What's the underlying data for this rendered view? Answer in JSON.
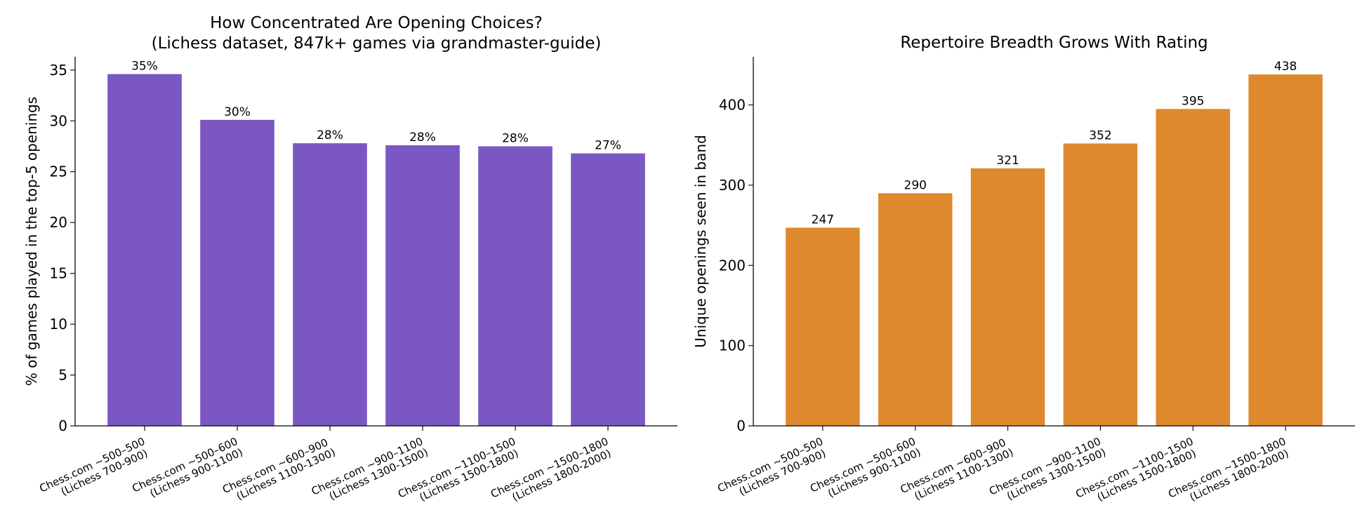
{
  "chart_data": [
    {
      "type": "bar",
      "title": "How Concentrated Are Opening Choices?\n(Lichess dataset, 847k+ games via grandmaster-guide)",
      "xlabel": "",
      "ylabel": "% of games played in the top-5 openings",
      "categories": [
        "Chess.com ~500–500\n(Lichess 700-900)",
        "Chess.com ~500–600\n(Lichess 900-1100)",
        "Chess.com ~600–900\n(Lichess 1100-1300)",
        "Chess.com ~900–1100\n(Lichess 1300-1500)",
        "Chess.com ~1100–1500\n(Lichess 1500-1800)",
        "Chess.com ~1500–1800\n(Lichess 1800-2000)"
      ],
      "values": [
        34.6,
        30.1,
        27.8,
        27.6,
        27.5,
        26.8
      ],
      "data_labels": [
        "35%",
        "30%",
        "28%",
        "28%",
        "28%",
        "27%"
      ],
      "ylim": [
        0,
        36.3
      ],
      "yticks": [
        0,
        5,
        10,
        15,
        20,
        25,
        30,
        35
      ],
      "color": "#7b57c2",
      "grid": false,
      "legend": "none"
    },
    {
      "type": "bar",
      "title": "Repertoire Breadth Grows With Rating",
      "xlabel": "",
      "ylabel": "Unique openings seen in band",
      "categories": [
        "Chess.com ~500–500\n(Lichess 700-900)",
        "Chess.com ~500–600\n(Lichess 900-1100)",
        "Chess.com ~600–900\n(Lichess 1100-1300)",
        "Chess.com ~900–1100\n(Lichess 1300-1500)",
        "Chess.com ~1100–1500\n(Lichess 1500-1800)",
        "Chess.com ~1500–1800\n(Lichess 1800-2000)"
      ],
      "values": [
        247,
        290,
        321,
        352,
        395,
        438
      ],
      "data_labels": [
        "247",
        "290",
        "321",
        "352",
        "395",
        "438"
      ],
      "ylim": [
        0,
        460
      ],
      "yticks": [
        0,
        100,
        200,
        300,
        400
      ],
      "color": "#df892e",
      "grid": false,
      "legend": "none"
    }
  ]
}
